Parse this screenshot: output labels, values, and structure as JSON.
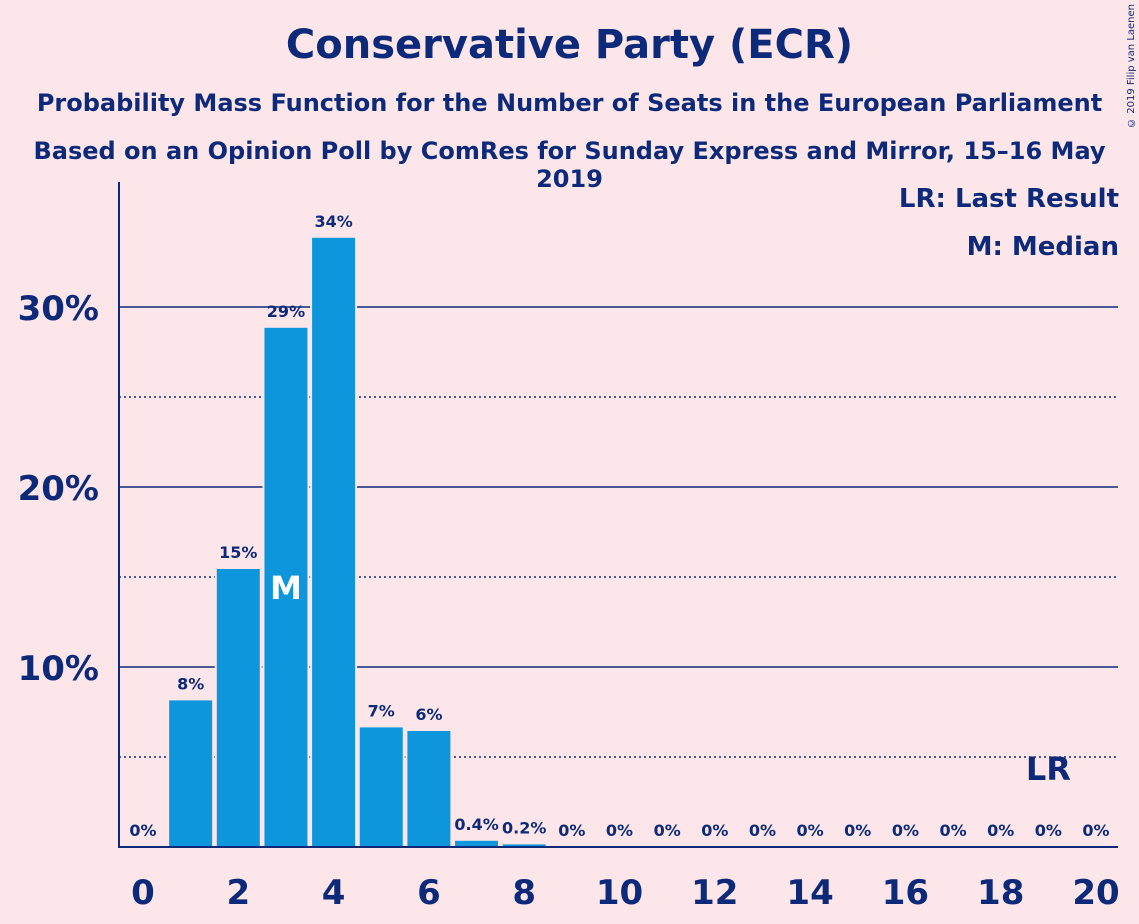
{
  "title": "Conservative Party (ECR)",
  "subtitle1": "Probability Mass Function for the Number of Seats in the European Parliament",
  "subtitle2": "Based on an Opinion Poll by ComRes for Sunday Express and Mirror, 15–16 May 2019",
  "copyright": "© 2019 Filip van Laenen",
  "legend": {
    "last_result": "LR: Last Result",
    "median": "M: Median"
  },
  "colors": {
    "bar": "#0d96dc",
    "text": "#0d2a7a",
    "background": "#fde6e9"
  },
  "chart_data": {
    "type": "bar",
    "x": [
      0,
      1,
      2,
      3,
      4,
      5,
      6,
      7,
      8,
      9,
      10,
      11,
      12,
      13,
      14,
      15,
      16,
      17,
      18,
      19,
      20
    ],
    "values": [
      0,
      8.2,
      15.5,
      28.9,
      33.9,
      6.7,
      6.5,
      0.4,
      0.2,
      0,
      0,
      0,
      0,
      0,
      0,
      0,
      0,
      0,
      0,
      0,
      0
    ],
    "labels": [
      "0%",
      "8%",
      "15%",
      "29%",
      "34%",
      "7%",
      "6%",
      "0.4%",
      "0.2%",
      "0%",
      "0%",
      "0%",
      "0%",
      "0%",
      "0%",
      "0%",
      "0%",
      "0%",
      "0%",
      "0%",
      "0%"
    ],
    "x_ticks": [
      0,
      2,
      4,
      6,
      8,
      10,
      12,
      14,
      16,
      18,
      20
    ],
    "y_ticks": [
      10,
      20,
      30
    ],
    "y_tick_labels": [
      "10%",
      "20%",
      "30%"
    ],
    "y_minor_gridlines": [
      5,
      15,
      25
    ],
    "ylim": [
      0,
      36
    ],
    "xlim": [
      0,
      20
    ],
    "median": 3,
    "median_label": "M",
    "last_result": 19,
    "last_result_label": "LR",
    "legend_position": "top-right"
  }
}
